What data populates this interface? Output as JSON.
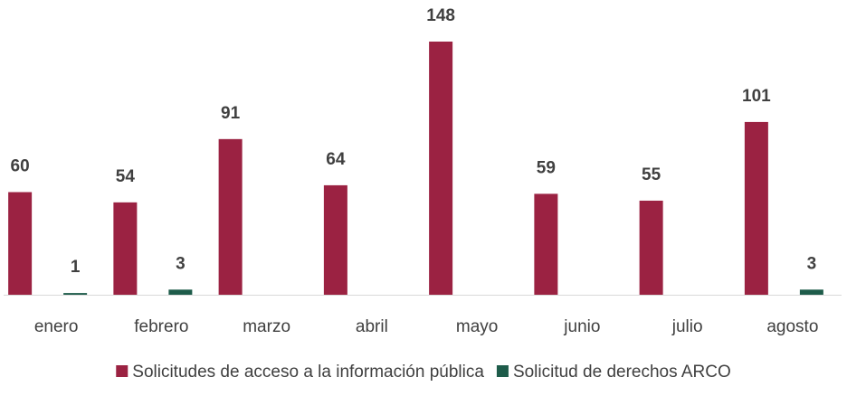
{
  "chart_data": {
    "type": "bar",
    "categories": [
      "enero",
      "febrero",
      "marzo",
      "abril",
      "mayo",
      "junio",
      "julio",
      "agosto"
    ],
    "series": [
      {
        "name": "Solicitudes de acceso a la información pública",
        "color": "#9b2242",
        "values": [
          60,
          54,
          91,
          64,
          148,
          59,
          55,
          101
        ]
      },
      {
        "name": "Solicitud de derechos ARCO",
        "color": "#1e5c4a",
        "values": [
          1,
          3,
          null,
          null,
          null,
          null,
          null,
          3
        ]
      }
    ],
    "legend": "bottom"
  }
}
